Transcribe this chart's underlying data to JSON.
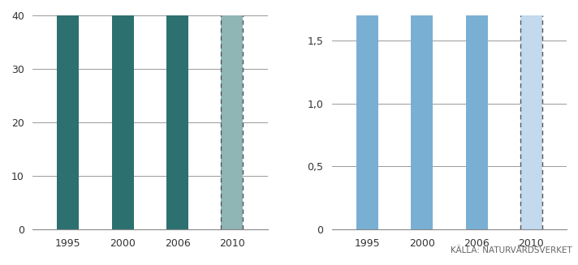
{
  "left": {
    "categories": [
      "1995",
      "2000",
      "2006",
      "2010"
    ],
    "values": [
      40,
      40,
      40,
      40
    ],
    "bar_colors": [
      "#2d7070",
      "#2d7070",
      "#2d7070",
      "#8fb5b5"
    ],
    "yticks": [
      0,
      10,
      20,
      30,
      40
    ],
    "ytick_labels": [
      "0",
      "10",
      "20",
      "30",
      "40"
    ],
    "ylim": [
      0,
      40
    ],
    "dashed_last": true
  },
  "right": {
    "categories": [
      "1995",
      "2000",
      "2006",
      "2010"
    ],
    "values": [
      1.7,
      1.7,
      1.7,
      1.7
    ],
    "bar_colors": [
      "#7aafd4",
      "#7aafd4",
      "#7aafd4",
      "#c2d9ee"
    ],
    "yticks": [
      0,
      0.5,
      1.0,
      1.5
    ],
    "ytick_labels": [
      "0",
      "0,5",
      "1,0",
      "1,5"
    ],
    "ylim": [
      0,
      1.7
    ],
    "dashed_last": true
  },
  "source_text": "KÄLLA: NATURVÅRDSVERKET",
  "background_color": "#ffffff",
  "bar_width": 0.4,
  "tick_color": "#333333",
  "spine_color": "#888888",
  "grid_color": "#888888",
  "dashed_line_color": "#555555"
}
